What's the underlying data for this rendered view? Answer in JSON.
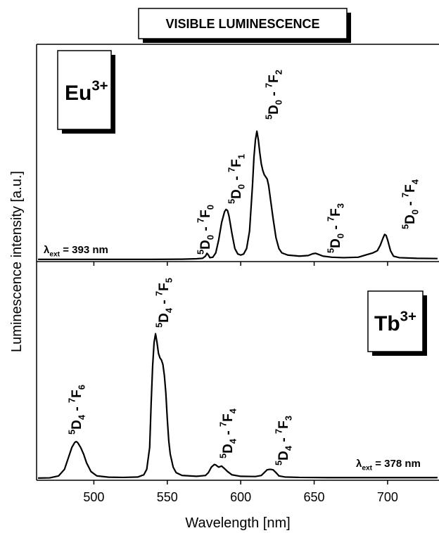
{
  "title": "VISIBLE LUMINESCENCE",
  "y_label": "Luminescence intensity [a.u.]",
  "chart_data": [
    {
      "type": "line",
      "xlim": [
        461,
        735
      ],
      "ylim": [
        0,
        100
      ],
      "xticks": [
        500,
        550,
        600,
        650,
        700
      ],
      "ion": [
        {
          "text": "Eu"
        },
        {
          "text": "3+",
          "pos": "sup"
        }
      ],
      "excitation": [
        {
          "text": "λ"
        },
        {
          "text": "ext",
          "pos": "sub"
        },
        {
          "text": " = 393 nm"
        }
      ],
      "annotations": [
        [
          {
            "text": "5",
            "pos": "sup"
          },
          {
            "text": "D"
          },
          {
            "text": "0",
            "pos": "sub"
          },
          {
            "text": " - "
          },
          {
            "text": "7",
            "pos": "sup"
          },
          {
            "text": "F"
          },
          {
            "text": "0",
            "pos": "sub"
          }
        ],
        [
          {
            "text": "5",
            "pos": "sup"
          },
          {
            "text": "D"
          },
          {
            "text": "0",
            "pos": "sub"
          },
          {
            "text": " - "
          },
          {
            "text": "7",
            "pos": "sup"
          },
          {
            "text": "F"
          },
          {
            "text": "1",
            "pos": "sub"
          }
        ],
        [
          {
            "text": "5",
            "pos": "sup"
          },
          {
            "text": "D"
          },
          {
            "text": "0",
            "pos": "sub"
          },
          {
            "text": " - "
          },
          {
            "text": "7",
            "pos": "sup"
          },
          {
            "text": "F"
          },
          {
            "text": "2",
            "pos": "sub"
          }
        ],
        [
          {
            "text": "5",
            "pos": "sup"
          },
          {
            "text": "D"
          },
          {
            "text": "0",
            "pos": "sub"
          },
          {
            "text": " - "
          },
          {
            "text": "7",
            "pos": "sup"
          },
          {
            "text": "F"
          },
          {
            "text": "3",
            "pos": "sub"
          }
        ],
        [
          {
            "text": "5",
            "pos": "sup"
          },
          {
            "text": "D"
          },
          {
            "text": "0",
            "pos": "sub"
          },
          {
            "text": " - "
          },
          {
            "text": "7",
            "pos": "sup"
          },
          {
            "text": "F"
          },
          {
            "text": "4",
            "pos": "sub"
          }
        ]
      ],
      "x": [
        462,
        500,
        540,
        560,
        570,
        574,
        576,
        577,
        578,
        579,
        581,
        583,
        585,
        587,
        589,
        590,
        591,
        592,
        594,
        596,
        598,
        600,
        602,
        604,
        606,
        608,
        609,
        610,
        611,
        612,
        613,
        614,
        615,
        616,
        617,
        618,
        619,
        620,
        622,
        624,
        626,
        628,
        632,
        640,
        646,
        649,
        651,
        653,
        656,
        662,
        670,
        680,
        686,
        690,
        693,
        695,
        697,
        698,
        699,
        700,
        702,
        704,
        708,
        720,
        734
      ],
      "series": [
        {
          "color": "#000000",
          "values": [
            1.0,
            1.0,
            1.0,
            1.1,
            1.3,
            1.5,
            2.5,
            3.8,
            3.0,
            1.8,
            2.0,
            4,
            10,
            18,
            23,
            24,
            23.5,
            21,
            13,
            6,
            3.5,
            3,
            3.5,
            6,
            14,
            35,
            48,
            56,
            60,
            56,
            50,
            45,
            42,
            40,
            39,
            38,
            35,
            30,
            20,
            11,
            6,
            4,
            3,
            2.5,
            2.8,
            3.6,
            3.8,
            3.3,
            2.5,
            2.0,
            1.8,
            2.0,
            3.2,
            4,
            5,
            7.5,
            11,
            12.5,
            12,
            10,
            5,
            2.5,
            1.8,
            1.5,
            1.4
          ]
        }
      ]
    },
    {
      "type": "line",
      "xlim": [
        461,
        735
      ],
      "ylim": [
        0,
        100
      ],
      "xticks": [
        500,
        550,
        600,
        650,
        700
      ],
      "x_label": "Wavelength [nm]",
      "ion": [
        {
          "text": "Tb"
        },
        {
          "text": "3+",
          "pos": "sup"
        }
      ],
      "excitation": [
        {
          "text": "λ"
        },
        {
          "text": "ext",
          "pos": "sub"
        },
        {
          "text": " = 378 nm"
        }
      ],
      "annotations": [
        [
          {
            "text": "5",
            "pos": "sup"
          },
          {
            "text": "D"
          },
          {
            "text": "4",
            "pos": "sub"
          },
          {
            "text": " - "
          },
          {
            "text": "7",
            "pos": "sup"
          },
          {
            "text": "F"
          },
          {
            "text": "6",
            "pos": "sub"
          }
        ],
        [
          {
            "text": "5",
            "pos": "sup"
          },
          {
            "text": "D"
          },
          {
            "text": "4",
            "pos": "sub"
          },
          {
            "text": " - "
          },
          {
            "text": "7",
            "pos": "sup"
          },
          {
            "text": "F"
          },
          {
            "text": "5",
            "pos": "sub"
          }
        ],
        [
          {
            "text": "5",
            "pos": "sup"
          },
          {
            "text": "D"
          },
          {
            "text": "4",
            "pos": "sub"
          },
          {
            "text": " - "
          },
          {
            "text": "7",
            "pos": "sup"
          },
          {
            "text": "F"
          },
          {
            "text": "4",
            "pos": "sub"
          }
        ],
        [
          {
            "text": "5",
            "pos": "sup"
          },
          {
            "text": "D"
          },
          {
            "text": "4",
            "pos": "sub"
          },
          {
            "text": " - "
          },
          {
            "text": "7",
            "pos": "sup"
          },
          {
            "text": "F"
          },
          {
            "text": "3",
            "pos": "sub"
          }
        ]
      ],
      "x": [
        462,
        470,
        476,
        480,
        483,
        485,
        487,
        488,
        489,
        491,
        493,
        495,
        498,
        502,
        510,
        520,
        530,
        534,
        536,
        538,
        539,
        540,
        541,
        542,
        543,
        544,
        545,
        546,
        547,
        548,
        549,
        550,
        551,
        552,
        554,
        556,
        560,
        570,
        576,
        578,
        580,
        582,
        583,
        585,
        587,
        589,
        591,
        594,
        600,
        610,
        614,
        616,
        618,
        620,
        622,
        624,
        626,
        630,
        640,
        660,
        700,
        734
      ],
      "series": [
        {
          "color": "#000000",
          "values": [
            1.0,
            1.1,
            2,
            5,
            11,
            15,
            17.3,
            17.7,
            17.2,
            15,
            12,
            8,
            4,
            2,
            1.4,
            1.3,
            1.5,
            2.5,
            5,
            15,
            35,
            52,
            63,
            67,
            63,
            58,
            56,
            55,
            53,
            48,
            40,
            28,
            18,
            12,
            6,
            3.5,
            2.2,
            1.8,
            2.2,
            3.5,
            6,
            7.2,
            7,
            6,
            6.5,
            5.3,
            4,
            2.5,
            1.8,
            1.7,
            2.2,
            3.5,
            4.8,
            5,
            4.8,
            3.5,
            2,
            1.5,
            1.3,
            1.2,
            1.2,
            1.2
          ]
        }
      ]
    }
  ]
}
